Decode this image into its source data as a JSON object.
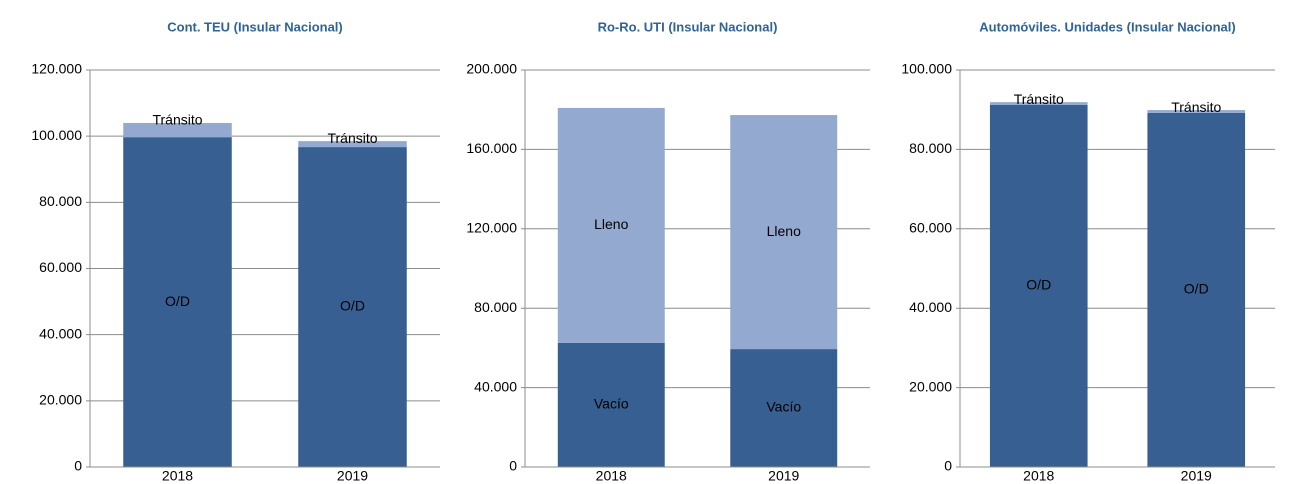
{
  "chart_data": [
    {
      "type": "stacked_bar",
      "title": "Cont. TEU (Insular Nacional)",
      "categories": [
        "2018",
        "2019"
      ],
      "series": [
        {
          "name": "O/D",
          "color": "#375f91",
          "values": [
            99700,
            96700
          ]
        },
        {
          "name": "Tránsito",
          "color": "#93a9cf",
          "values": [
            4300,
            1800
          ]
        }
      ],
      "ylim": [
        0,
        120000
      ],
      "yticks": [
        0,
        {
          "value": 20000,
          "label": "20.000"
        },
        {
          "value": 40000,
          "label": "40.000"
        },
        {
          "value": 60000,
          "label": "60.000"
        },
        {
          "value": 80000,
          "label": "80.000"
        },
        {
          "value": 100000,
          "label": "100.000"
        },
        {
          "value": 120000,
          "label": "120.000"
        }
      ],
      "grid": true
    },
    {
      "type": "stacked_bar",
      "title": "Ro-Ro. UTI (Insular Nacional)",
      "categories": [
        "2018",
        "2019"
      ],
      "series": [
        {
          "name": "Vacío",
          "color": "#375f91",
          "values": [
            62500,
            59400
          ]
        },
        {
          "name": "Lleno",
          "color": "#93a9cf",
          "values": [
            118400,
            117900
          ]
        }
      ],
      "ylim": [
        0,
        200000
      ],
      "yticks": [
        0,
        {
          "value": 40000,
          "label": "40.000"
        },
        {
          "value": 80000,
          "label": "80.000"
        },
        {
          "value": 120000,
          "label": "120.000"
        },
        {
          "value": 160000,
          "label": "160.000"
        },
        {
          "value": 200000,
          "label": "200.000"
        }
      ],
      "grid": true
    },
    {
      "type": "stacked_bar",
      "title": "Automóviles. Unidades (Insular Nacional)",
      "categories": [
        "2018",
        "2019"
      ],
      "series": [
        {
          "name": "O/D",
          "color": "#375f91",
          "values": [
            91200,
            89200
          ]
        },
        {
          "name": "Tránsito",
          "color": "#93a9cf",
          "values": [
            700,
            700
          ]
        }
      ],
      "ylim": [
        0,
        100000
      ],
      "yticks": [
        0,
        {
          "value": 20000,
          "label": "20.000"
        },
        {
          "value": 40000,
          "label": "40.000"
        },
        {
          "value": 60000,
          "label": "60.000"
        },
        {
          "value": 80000,
          "label": "80.000"
        },
        {
          "value": 100000,
          "label": "100.000"
        }
      ],
      "grid": true
    }
  ]
}
